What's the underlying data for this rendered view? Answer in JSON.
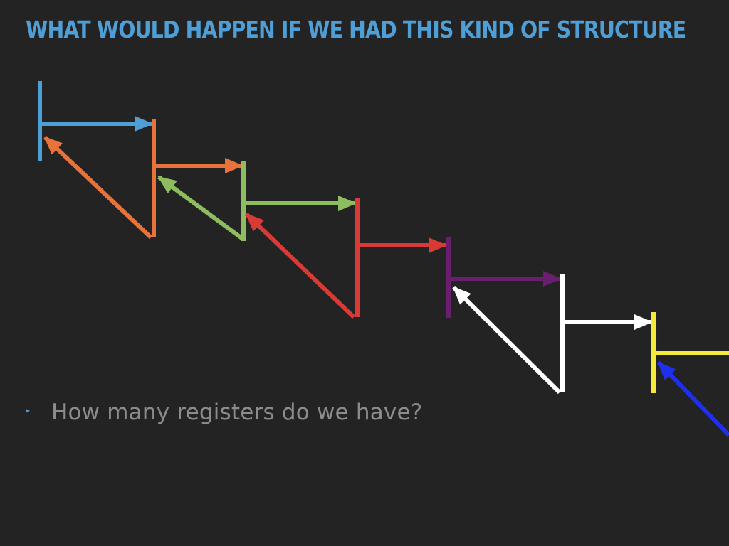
{
  "title": "WHAT WOULD HAPPEN IF WE HAD THIS KIND OF STRUCTURE",
  "bullets": [
    "How many registers do we have?"
  ],
  "bullet_marker": "▸",
  "colors": {
    "background": "#232323",
    "title": "#4f9fd6",
    "bullet_text": "#8c8c8c",
    "bullet_marker": "#4f9fd6",
    "frame_1": "#4e9fd6",
    "frame_2": "#e8733a",
    "frame_3": "#8ebd5f",
    "frame_4": "#d93a36",
    "frame_5": "#6a1f6e",
    "frame_6": "#ffffff",
    "frame_7": "#f5ea3a",
    "frame_8": "#1e2ff2"
  }
}
